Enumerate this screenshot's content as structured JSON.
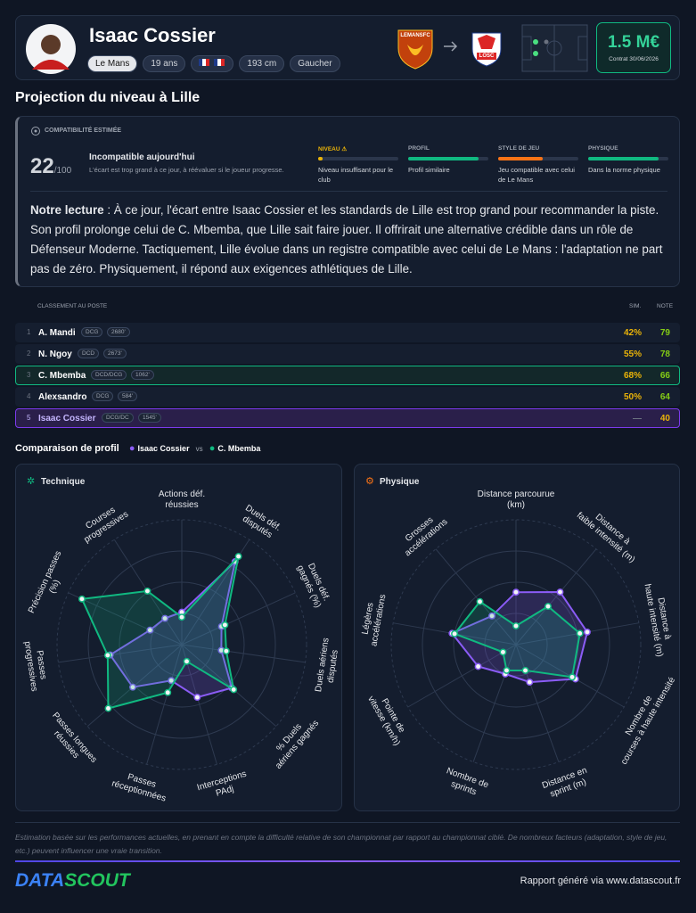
{
  "header": {
    "name": "Isaac Cossier",
    "tags": [
      "Le Mans",
      "19 ans",
      "193 cm",
      "Gaucher"
    ],
    "from_club": "LEMANSFC",
    "to_club": "LOSC",
    "value": "1.5 M€",
    "contract": "Contrat 30/06/2026"
  },
  "projection": {
    "title": "Projection du niveau à Lille",
    "compat_label": "COMPATIBILITÉ ESTIMÉE",
    "score": 22,
    "score_max": "/100",
    "verdict": "Incompatible aujourd'hui",
    "verdict_note": "L'écart est trop grand à ce jour, à réévaluer si le joueur progresse.",
    "criteria": [
      {
        "name": "NIVEAU ⚠",
        "note": "Niveau insuffisant pour le club",
        "level": 6,
        "color": "#eab308"
      },
      {
        "name": "PROFIL",
        "note": "Profil similaire",
        "level": 88,
        "color": "#10b981"
      },
      {
        "name": "STYLE DE JEU",
        "note": "Jeu compatible avec celui de Le Mans",
        "level": 55,
        "color": "#f97316"
      },
      {
        "name": "PHYSIQUE",
        "note": "Dans la norme physique",
        "level": 88,
        "color": "#10b981"
      }
    ],
    "reading_label": "Notre lecture",
    "reading": " : À ce jour, l'écart entre Isaac Cossier et les standards de Lille est trop grand pour recommander la piste. Son profil prolonge celui de C. Mbemba, que Lille sait faire jouer. Il offrirait une alternative crédible dans un rôle de Défenseur Moderne. Tactiquement, Lille évolue dans un registre compatible avec celui de Le Mans : l'adaptation ne part pas de zéro. Physiquement, il répond aux exigences athlétiques de Lille."
  },
  "ranking": {
    "title": "CLASSEMENT AU POSTE",
    "sim_header": "SIM.",
    "note_header": "NOTE",
    "rows": [
      {
        "rank": 1,
        "name": "A. Mandi",
        "position": "DCG",
        "elo": "2680'",
        "sim": "42%",
        "note": 79
      },
      {
        "rank": 2,
        "name": "N. Ngoy",
        "position": "DCD",
        "elo": "2673'",
        "sim": "55%",
        "note": 78
      },
      {
        "rank": 3,
        "name": "C. Mbemba",
        "position": "DCD/DCG",
        "elo": "1062'",
        "sim": "68%",
        "note": 66
      },
      {
        "rank": 4,
        "name": "Alexsandro",
        "position": "DCG",
        "elo": "584'",
        "sim": "50%",
        "note": 64
      },
      {
        "rank": 5,
        "name": "Isaac Cossier",
        "position": "DCG/DC",
        "elo": "1545'",
        "sim": "—",
        "note": 40
      }
    ]
  },
  "comparison": {
    "title": "Comparaison de profil",
    "vs": "vs",
    "series": [
      {
        "name": "Isaac Cossier",
        "color": "#8b5cf6"
      },
      {
        "name": "C. Mbemba",
        "color": "#10b981"
      }
    ],
    "radars": [
      {
        "type": "radar",
        "title": "Technique",
        "rlim": [
          0,
          100
        ],
        "axes": [
          [
            "Actions déf.",
            "réussies"
          ],
          [
            "Duels déf.",
            "disputés"
          ],
          [
            "Duels déf.",
            "gagnés (%)"
          ],
          [
            "Duels aériens",
            "disputés"
          ],
          [
            "% Duels",
            "aériens gagnés"
          ],
          [
            "Interceptions",
            "PAdj"
          ],
          [
            "Passes",
            "réceptionnées"
          ],
          [
            "Passes longues",
            "réussies"
          ],
          [
            "Passes",
            "progressives"
          ],
          [
            "Précision passes",
            "(%)"
          ],
          [
            "Courses",
            "progressives"
          ]
        ],
        "series": [
          {
            "values": [
              26,
              79,
              35,
              32,
              53,
              44,
              30,
              52,
              58,
              28,
              25
            ]
          },
          {
            "values": [
              22,
              84,
              38,
              36,
              55,
              14,
              40,
              78,
              60,
              88,
              51
            ]
          }
        ]
      },
      {
        "type": "radar",
        "title": "Physique",
        "rlim": [
          0,
          100
        ],
        "axes": [
          [
            "Distance parcourue",
            "(km)"
          ],
          [
            "Distance à",
            "faible intensité (m)"
          ],
          [
            "Distance à",
            "haute intensité (m)"
          ],
          [
            "Nombre de",
            "courses à haute intensité"
          ],
          [
            "Distance en",
            "sprint (m)"
          ],
          [
            "Nombre de",
            "sprints"
          ],
          [
            "Pointe de",
            "vitesse (km/h)"
          ],
          [
            "Légères",
            "accélérations"
          ],
          [
            "Grosses",
            "accélérations"
          ]
        ],
        "series": [
          {
            "values": [
              42,
              55,
              58,
              55,
              32,
              25,
              35,
              52,
              30
            ]
          },
          {
            "values": [
              15,
              40,
              52,
              52,
              22,
              22,
              12,
              50,
              45
            ]
          }
        ]
      }
    ]
  },
  "footer": {
    "disclaimer": "Estimation basée sur les performances actuelles, en prenant en compte la difficulté relative de son championnat par rapport au championnat ciblé. De nombreux facteurs (adaptation, style de jeu, etc.) peuvent influencer une vraie transition.",
    "logo_a": "DATA",
    "logo_b": "SCOUT",
    "credit": "Rapport généré via www.datascout.fr"
  }
}
